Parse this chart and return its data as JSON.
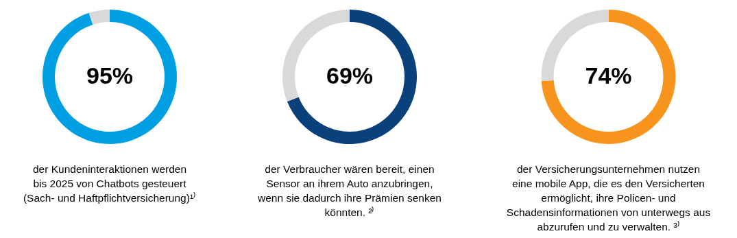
{
  "chart_data": [
    {
      "type": "donut",
      "categories": [
        null,
        null
      ],
      "values": [
        95,
        5
      ],
      "colors": [
        "#009fe3",
        "#d9d9d9"
      ],
      "value_labels": [
        "95%",
        null
      ],
      "annotations": [
        "der Kundeninteraktionen werden\nbis 2025 von Chatbots gesteuert\n(Sach- und Haftpflichtversicherung)¹⁾"
      ]
    },
    {
      "type": "donut",
      "categories": [
        null,
        null
      ],
      "values": [
        69,
        31
      ],
      "colors": [
        "#0b417a",
        "#d9d9d9"
      ],
      "value_labels": [
        "69%",
        null
      ],
      "annotations": [
        "der Verbraucher wären bereit, einen\nSensor an ihrem Auto anzubringen,\nwenn sie dadurch ihre Prämien senken\nkönnten. ²⁾"
      ]
    },
    {
      "type": "donut",
      "categories": [
        null,
        null
      ],
      "values": [
        74,
        26
      ],
      "colors": [
        "#f7941d",
        "#d9d9d9"
      ],
      "value_labels": [
        "74%",
        null
      ],
      "annotations": [
        "der Versicherungsunternehmen nutzen\neine mobile App, die es den Versicherten\nermöglicht, ihre Policen- und\nSchadensinformationen von unterwegs aus\nabzurufen und zu verwalten. ³⁾"
      ]
    }
  ]
}
